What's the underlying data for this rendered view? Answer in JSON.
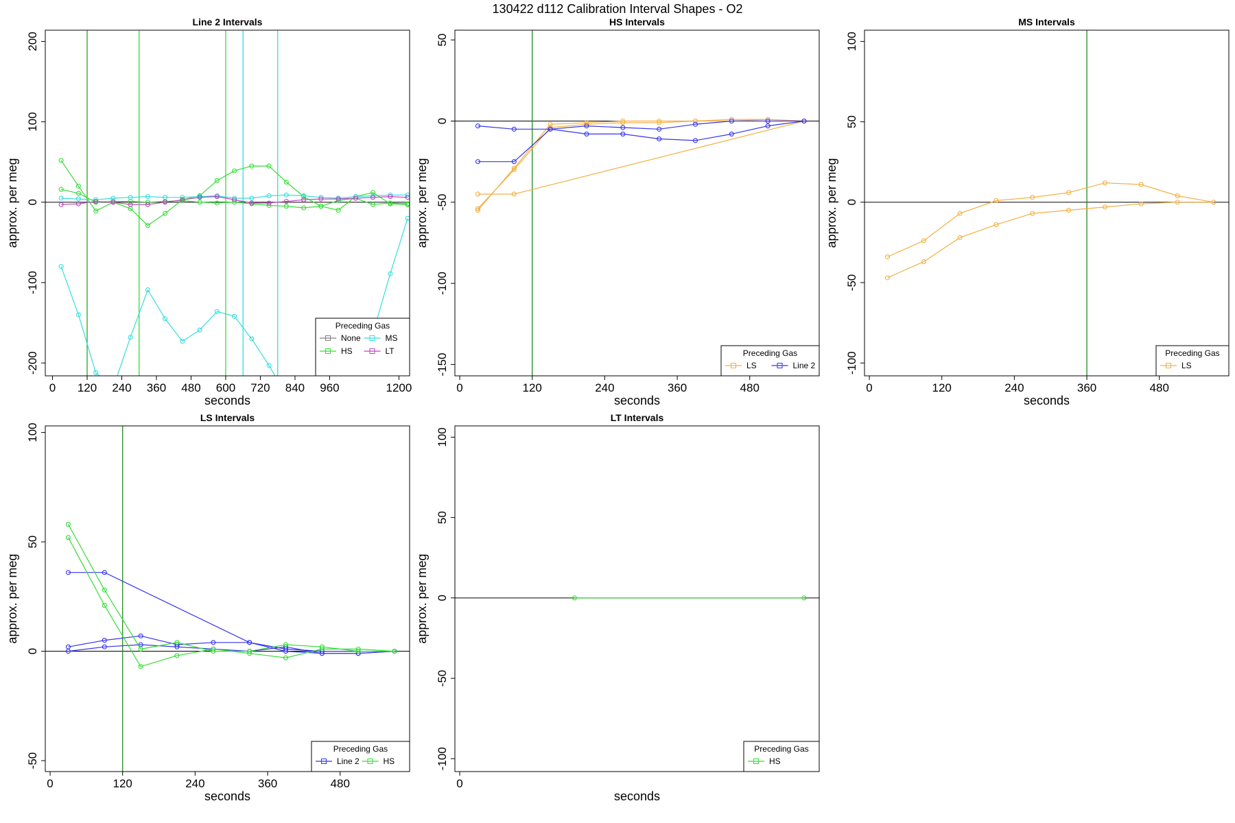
{
  "figure": {
    "title": "130422   d112   Calibration Interval Shapes - O2"
  },
  "colors": {
    "None": "#808080",
    "HS": "#33dd33",
    "MS": "#33dddd",
    "LT": "#bb44bb",
    "LS": "#f2b040",
    "Line 2": "#3333ee",
    "refline": "#228822"
  },
  "chart_data": [
    {
      "type": "line",
      "title": "Line 2 Intervals",
      "xlabel": "seconds",
      "ylabel": "approx. per meg",
      "xlim": [
        -25,
        1237
      ],
      "ylim": [
        -216,
        214
      ],
      "xticks": [
        0,
        120,
        240,
        360,
        480,
        600,
        720,
        840,
        960,
        1200
      ],
      "xtick_labels": [
        "0",
        "120",
        "240",
        "360",
        "480",
        "600",
        "720",
        "840",
        "960",
        "1200"
      ],
      "yticks": [
        -200,
        -100,
        0,
        100,
        200
      ],
      "vlines": [
        {
          "x": 120,
          "color": "#22aa22"
        },
        {
          "x": 300,
          "color": "#33dd33"
        },
        {
          "x": 600,
          "color": "#33dd33"
        },
        {
          "x": 660,
          "color": "#33dddd"
        },
        {
          "x": 780,
          "color": "#33dddd"
        }
      ],
      "legend": {
        "title": "Preceding Gas",
        "position": "bottom-right",
        "entries": [
          "None",
          "MS",
          "HS",
          "LT"
        ]
      },
      "series": [
        {
          "name": "HS",
          "x": [
            30,
            90,
            150,
            210,
            270,
            330,
            390,
            450,
            510,
            570,
            630,
            690,
            750,
            810,
            870,
            930,
            990,
            1050,
            1110,
            1170,
            1230
          ],
          "y": [
            52,
            20,
            -11,
            0,
            -8,
            -29,
            -14,
            3,
            8,
            27,
            39,
            45,
            45,
            25,
            7,
            -5,
            -10,
            7,
            12,
            -2,
            -3
          ]
        },
        {
          "name": "HS",
          "x": [
            30,
            90,
            150,
            210,
            270,
            330,
            390,
            450,
            510,
            570,
            630,
            690,
            750,
            810,
            870,
            930,
            990,
            1050,
            1110,
            1170,
            1230
          ],
          "y": [
            16,
            11,
            0,
            1,
            1,
            0,
            1,
            2,
            0,
            -1,
            0,
            -2,
            -4,
            -5,
            -7,
            -5,
            2,
            5,
            -3,
            -1,
            -2
          ]
        },
        {
          "name": "MS",
          "x": [
            30,
            90,
            150,
            210,
            270,
            330,
            390,
            450,
            510,
            570,
            630,
            690,
            750,
            810,
            870,
            930,
            990,
            1050,
            1110,
            1170,
            1230
          ],
          "y": [
            5,
            4,
            3,
            5,
            6,
            7,
            6,
            6,
            7,
            8,
            5,
            5,
            8,
            9,
            8,
            6,
            5,
            7,
            8,
            9,
            9
          ]
        },
        {
          "name": "MS",
          "x": [
            30,
            90,
            150,
            210,
            270,
            330,
            390,
            450,
            510,
            570,
            630,
            690,
            750,
            810
          ],
          "y": [
            -80,
            -140,
            -212,
            -231,
            -168,
            -109,
            -145,
            -173,
            -159,
            -136,
            -142,
            -170,
            -203,
            -240
          ]
        },
        {
          "name": "MS",
          "x": [
            1050,
            1110,
            1170,
            1230
          ],
          "y": [
            -240,
            -163,
            -89,
            -20
          ]
        },
        {
          "name": "LT",
          "x": [
            30,
            90,
            150,
            210,
            270,
            330,
            390,
            450,
            510,
            570,
            630,
            690,
            750,
            810,
            870,
            930,
            990,
            1050,
            1110,
            1170,
            1230
          ],
          "y": [
            -3,
            -2,
            1,
            0,
            -3,
            -3,
            0,
            3,
            6,
            7,
            3,
            -1,
            -1,
            1,
            3,
            4,
            4,
            5,
            6,
            7,
            6
          ]
        }
      ]
    },
    {
      "type": "line",
      "title": "HS Intervals",
      "xlabel": "seconds",
      "ylabel": "approx. per meg",
      "xlim": [
        -8,
        595
      ],
      "ylim": [
        -157,
        56
      ],
      "xticks": [
        0,
        120,
        240,
        360,
        480
      ],
      "xtick_labels": [
        "0",
        "120",
        "240",
        "360",
        "480"
      ],
      "yticks": [
        -150,
        -100,
        -50,
        0,
        50
      ],
      "vlines": [
        {
          "x": 120,
          "color": "#228822"
        }
      ],
      "legend": {
        "title": "Preceding Gas",
        "position": "bottom-right",
        "entries": [
          "LS",
          "Line 2"
        ]
      },
      "series": [
        {
          "name": "LS",
          "x": [
            30,
            90,
            570
          ],
          "y": [
            -45,
            -45,
            0
          ]
        },
        {
          "name": "LS",
          "x": [
            30,
            90,
            150,
            210,
            270,
            330,
            390,
            450,
            510,
            570
          ],
          "y": [
            -55,
            -29,
            -2,
            -1,
            0,
            0,
            0,
            0,
            1,
            0
          ]
        },
        {
          "name": "LS",
          "x": [
            30,
            90,
            150,
            210,
            270,
            330,
            390,
            450,
            510,
            570
          ],
          "y": [
            -54,
            -30,
            -4,
            -2,
            -1,
            -1,
            0,
            1,
            1,
            0
          ]
        },
        {
          "name": "Line 2",
          "x": [
            30,
            90,
            150,
            210,
            270,
            330,
            390,
            450,
            510,
            570
          ],
          "y": [
            -3,
            -5,
            -5,
            -3,
            -4,
            -5,
            -2,
            0,
            0,
            0
          ]
        },
        {
          "name": "Line 2",
          "x": [
            30,
            90,
            150,
            210,
            270,
            330,
            390,
            450,
            510,
            570
          ],
          "y": [
            -25,
            -25,
            -5,
            -8,
            -8,
            -11,
            -12,
            -8,
            -3,
            0
          ]
        }
      ]
    },
    {
      "type": "line",
      "title": "MS Intervals",
      "xlabel": "seconds",
      "ylabel": "approx. per meg",
      "xlim": [
        -8,
        595
      ],
      "ylim": [
        -108,
        107
      ],
      "xticks": [
        0,
        120,
        240,
        360,
        480
      ],
      "xtick_labels": [
        "0",
        "120",
        "240",
        "360",
        "480"
      ],
      "yticks": [
        -100,
        -50,
        0,
        50,
        100
      ],
      "vlines": [
        {
          "x": 360,
          "color": "#228822"
        }
      ],
      "legend": {
        "title": "Preceding Gas",
        "position": "bottom-right",
        "entries": [
          "LS"
        ]
      },
      "series": [
        {
          "name": "LS",
          "x": [
            30,
            90,
            150,
            210,
            270,
            330,
            390,
            450,
            510,
            570
          ],
          "y": [
            -34,
            -24,
            -7,
            1,
            3,
            6,
            12,
            11,
            4,
            0
          ]
        },
        {
          "name": "LS",
          "x": [
            30,
            90,
            150,
            210,
            270,
            330,
            390,
            450,
            510,
            570
          ],
          "y": [
            -47,
            -37,
            -22,
            -14,
            -7,
            -5,
            -3,
            -1,
            0,
            0
          ]
        }
      ]
    },
    {
      "type": "line",
      "title": "LS Intervals",
      "xlabel": "seconds",
      "ylabel": "approx. per meg",
      "xlim": [
        -8,
        595
      ],
      "ylim": [
        -55,
        103
      ],
      "xticks": [
        0,
        120,
        240,
        360,
        480
      ],
      "xtick_labels": [
        "0",
        "120",
        "240",
        "360",
        "480"
      ],
      "yticks": [
        -50,
        0,
        50,
        100
      ],
      "vlines": [
        {
          "x": 120,
          "color": "#228822"
        }
      ],
      "legend": {
        "title": "Preceding Gas",
        "position": "bottom-right",
        "entries": [
          "Line 2",
          "HS"
        ]
      },
      "series": [
        {
          "name": "Line 2",
          "x": [
            30,
            90,
            330,
            390,
            450,
            510,
            570
          ],
          "y": [
            36,
            36,
            4,
            0,
            -1,
            -1,
            0
          ]
        },
        {
          "name": "Line 2",
          "x": [
            30,
            90,
            150,
            210,
            270,
            330,
            390,
            450,
            510,
            570
          ],
          "y": [
            2,
            5,
            7,
            3,
            4,
            4,
            1,
            0,
            0,
            0
          ]
        },
        {
          "name": "Line 2",
          "x": [
            30,
            90,
            150,
            210,
            270,
            330,
            390,
            450,
            510,
            570
          ],
          "y": [
            0,
            2,
            3,
            2,
            1,
            0,
            2,
            -1,
            -1,
            0
          ]
        },
        {
          "name": "HS",
          "x": [
            30,
            90,
            150,
            210,
            270,
            330,
            390,
            450,
            510,
            570
          ],
          "y": [
            58,
            28,
            1,
            4,
            0,
            0,
            3,
            2,
            0,
            0
          ]
        },
        {
          "name": "HS",
          "x": [
            30,
            90,
            150,
            210,
            270,
            330,
            390,
            450,
            510,
            570
          ],
          "y": [
            52,
            21,
            -7,
            -2,
            1,
            -1,
            -3,
            1,
            1,
            0
          ]
        }
      ]
    },
    {
      "type": "line",
      "title": "LT Intervals",
      "xlabel": "seconds",
      "ylabel": "approx. per meg",
      "xlim": [
        -8,
        595
      ],
      "ylim": [
        -108,
        107
      ],
      "xticks": [
        0
      ],
      "xtick_labels": [
        "0"
      ],
      "yticks": [
        -100,
        -50,
        0,
        50,
        100
      ],
      "vlines": [],
      "legend": {
        "title": "Preceding Gas",
        "position": "bottom-right",
        "entries": [
          "HS"
        ]
      },
      "series": [
        {
          "name": "HS",
          "x": [
            190,
            570
          ],
          "y": [
            0,
            0
          ]
        }
      ]
    }
  ]
}
